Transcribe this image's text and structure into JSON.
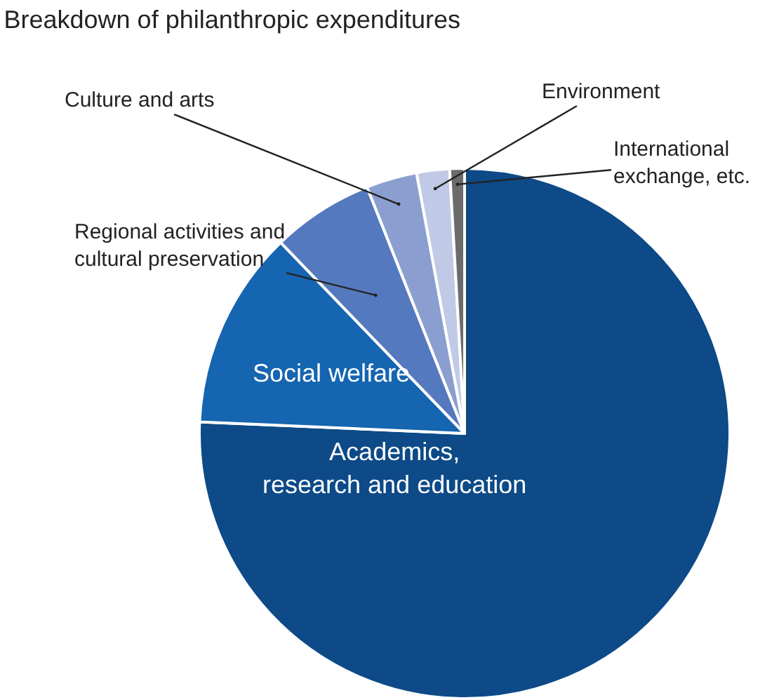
{
  "chart_data": {
    "type": "pie",
    "title": "Breakdown of philanthropic expenditures",
    "categories": [
      "Academics,\nresearch and education",
      "Social welfare",
      "Regional activities and\ncultural preservation",
      "Culture and arts",
      "Environment",
      "International\nexchange, etc."
    ],
    "values": [
      75.7,
      12.1,
      6.2,
      3.1,
      2.0,
      0.9
    ],
    "colors": [
      "#0d4a87",
      "#1565b0",
      "#5579be",
      "#8a9fd0",
      "#c0c9e6",
      "#6b6b6b"
    ]
  }
}
